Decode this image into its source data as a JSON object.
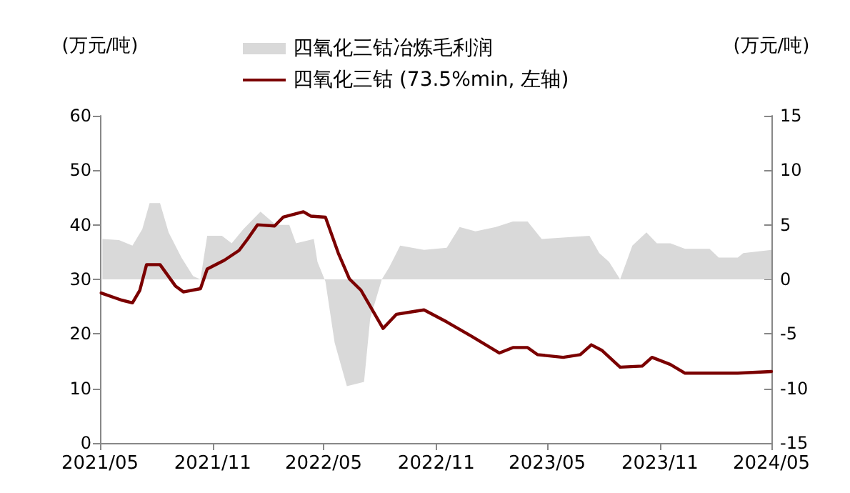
{
  "chart_data": {
    "type": "line",
    "ylabel": "(万元/吨)",
    "y2label": "(万元/吨)",
    "xlim": [
      "2021-05-01",
      "2024-05-01"
    ],
    "xticks": [
      {
        "value": "2021-05-01",
        "label": "2021/05"
      },
      {
        "value": "2021-11-01",
        "label": "2021/11"
      },
      {
        "value": "2022-05-01",
        "label": "2022/05"
      },
      {
        "value": "2022-11-01",
        "label": "2022/11"
      },
      {
        "value": "2023-05-01",
        "label": "2023/05"
      },
      {
        "value": "2023-11-01",
        "label": "2023/11"
      },
      {
        "value": "2024-05-01",
        "label": "2024/05"
      }
    ],
    "ylim": [
      0,
      60
    ],
    "yticks": [
      0,
      10,
      20,
      30,
      40,
      50,
      60
    ],
    "y2lim": [
      -15,
      15
    ],
    "y2ticks": [
      -15,
      -10,
      -5,
      0,
      5,
      10,
      15
    ],
    "grid": false,
    "legend": "top",
    "marker": "none",
    "line_style": "solid",
    "series": [
      {
        "name": "四氧化三钴冶炼毛利润",
        "type": "area",
        "axis": "y2",
        "color": "#d9d9d9",
        "x": [
          "2021-05-05",
          "2021-06-01",
          "2021-06-23",
          "2021-07-09",
          "2021-07-21",
          "2021-08-07",
          "2021-08-21",
          "2021-09-11",
          "2021-09-30",
          "2021-10-12",
          "2021-10-23",
          "2021-11-16",
          "2021-12-02",
          "2021-12-21",
          "2022-01-18",
          "2022-02-12",
          "2022-03-06",
          "2022-03-17",
          "2022-04-15",
          "2022-04-21",
          "2022-05-04",
          "2022-05-19",
          "2022-06-08",
          "2022-07-06",
          "2022-07-16",
          "2022-08-04",
          "2022-08-16",
          "2022-09-03",
          "2022-10-12",
          "2022-11-18",
          "2022-12-09",
          "2023-01-04",
          "2023-02-06",
          "2023-03-06",
          "2023-03-30",
          "2023-04-22",
          "2023-07-09",
          "2023-07-25",
          "2023-08-10",
          "2023-08-28",
          "2023-09-17",
          "2023-10-10",
          "2023-10-27",
          "2023-11-18",
          "2023-12-12",
          "2024-01-21",
          "2024-02-05",
          "2024-03-07",
          "2024-03-16",
          "2024-05-01"
        ],
        "values": [
          3.7,
          3.6,
          3.1,
          4.6,
          7.0,
          7.0,
          4.3,
          2.0,
          0.3,
          0,
          4.0,
          4.0,
          3.3,
          4.6,
          6.2,
          5.0,
          5.0,
          3.3,
          3.7,
          1.6,
          -0.2,
          -5.8,
          -9.8,
          -9.4,
          -3.6,
          0,
          1.1,
          3.1,
          2.7,
          2.9,
          4.8,
          4.4,
          4.8,
          5.3,
          5.3,
          3.7,
          4.0,
          2.4,
          1.6,
          0,
          3.1,
          4.3,
          3.3,
          3.3,
          2.8,
          2.8,
          2.0,
          2.0,
          2.4,
          2.7
        ]
      },
      {
        "name": "四氧化三钴 (73.5%min, 左轴)",
        "color": "#7b0000",
        "x": [
          "2021-05-03",
          "2021-06-05",
          "2021-06-23",
          "2021-07-05",
          "2021-07-16",
          "2021-08-07",
          "2021-09-01",
          "2021-09-14",
          "2021-10-12",
          "2021-10-23",
          "2021-11-20",
          "2021-12-14",
          "2021-12-28",
          "2022-01-13",
          "2022-02-10",
          "2022-02-24",
          "2022-03-29",
          "2022-04-10",
          "2022-05-04",
          "2022-05-25",
          "2022-06-12",
          "2022-07-01",
          "2022-08-06",
          "2022-08-28",
          "2022-09-25",
          "2022-10-12",
          "2022-11-18",
          "2022-12-28",
          "2023-02-12",
          "2023-03-06",
          "2023-03-30",
          "2023-04-15",
          "2023-05-27",
          "2023-06-24",
          "2023-07-12",
          "2023-07-29",
          "2023-08-28",
          "2023-10-03",
          "2023-10-19",
          "2023-11-18",
          "2023-12-12",
          "2024-03-07",
          "2024-05-01"
        ],
        "values": [
          27.5,
          26.2,
          25.7,
          28,
          32.7,
          32.7,
          28.8,
          27.7,
          28.3,
          31.9,
          33.5,
          35.3,
          37.4,
          40,
          39.8,
          41.4,
          42.4,
          41.6,
          41.4,
          34.8,
          30.1,
          28,
          21,
          23.6,
          24.1,
          24.4,
          22.2,
          19.6,
          16.5,
          17.5,
          17.5,
          16.2,
          15.7,
          16.2,
          18,
          17,
          13.9,
          14.1,
          15.7,
          14.4,
          12.8,
          12.8,
          13.1
        ]
      }
    ]
  }
}
